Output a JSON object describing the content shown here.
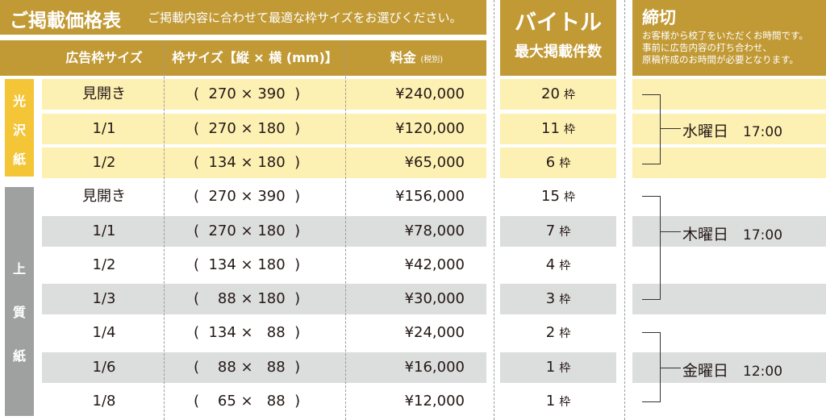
{
  "title": "ご掲載価格表",
  "subtitle": "ご掲載内容に合わせて最適な枠サイズをお選びください。",
  "headers": {
    "type": "広告枠サイズ",
    "size": "枠サイズ【縦 × 横 (mm)】",
    "price": "料金",
    "price_note": "(税別)"
  },
  "byte": {
    "title": "バイトル",
    "subtitle": "最大掲載件数"
  },
  "deadline": {
    "title": "締切",
    "note_1": "お客様から校了をいただくお時間です。",
    "note_2": "事前に広告内容の打ち合わせ、",
    "note_3": "原稿作成のお時間が必要となります。"
  },
  "unit": "枠",
  "paper": {
    "gloss": [
      "光",
      "沢",
      "紙"
    ],
    "quality": [
      "上",
      "質",
      "紙"
    ]
  },
  "rows": [
    {
      "type": "見開き",
      "size": "(  270 × 390  )",
      "price": "¥240,000",
      "count": "20"
    },
    {
      "type": "1/1",
      "size": "(  270 × 180  )",
      "price": "¥120,000",
      "count": "11"
    },
    {
      "type": "1/2",
      "size": "(  134 × 180  )",
      "price": "¥65,000",
      "count": "6"
    },
    {
      "type": "見開き",
      "size": "(  270 × 390  )",
      "price": "¥156,000",
      "count": "15"
    },
    {
      "type": "1/1",
      "size": "(  270 × 180  )",
      "price": "¥78,000",
      "count": "7"
    },
    {
      "type": "1/2",
      "size": "(  134 × 180  )",
      "price": "¥42,000",
      "count": "4"
    },
    {
      "type": "1/3",
      "size": "(    88 × 180  )",
      "price": "¥30,000",
      "count": "3"
    },
    {
      "type": "1/4",
      "size": "(  134 ×   88  )",
      "price": "¥24,000",
      "count": "2"
    },
    {
      "type": "1/6",
      "size": "(    88 ×   88  )",
      "price": "¥16,000",
      "count": "1"
    },
    {
      "type": "1/8",
      "size": "(    65 ×   88  )",
      "price": "¥12,000",
      "count": "1"
    }
  ],
  "deadlines": [
    {
      "day": "水曜日",
      "time": "17:00"
    },
    {
      "day": "木曜日",
      "time": "17:00"
    },
    {
      "day": "金曜日",
      "time": "12:00"
    }
  ]
}
